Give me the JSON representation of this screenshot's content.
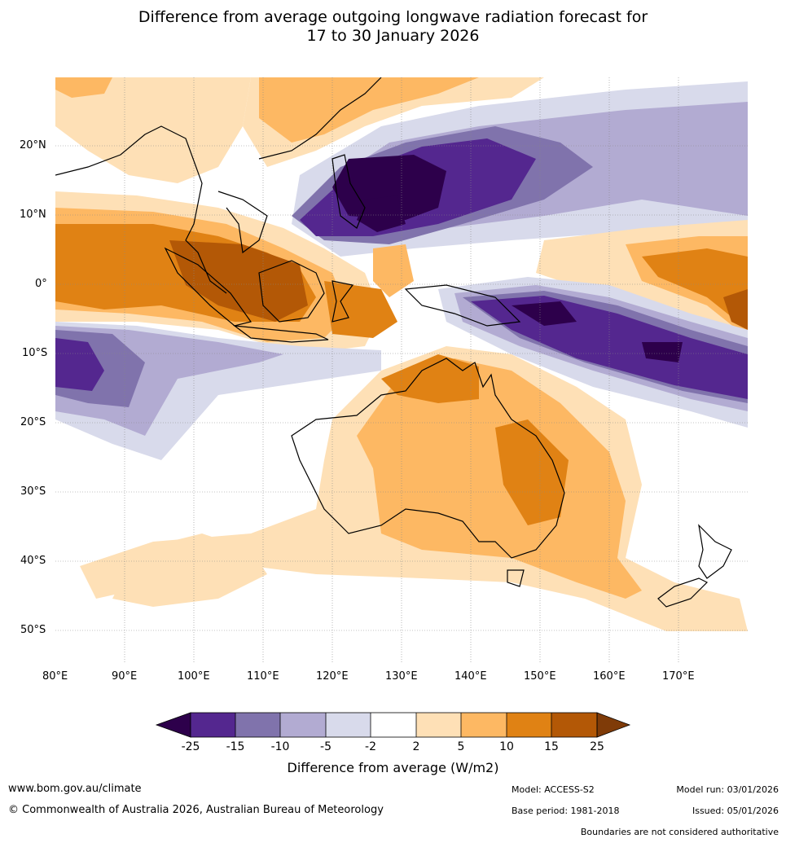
{
  "title": {
    "line1": "Difference from average outgoing longwave radiation forecast for",
    "line2": "17 to 30 January 2026"
  },
  "map": {
    "lon_labels": [
      "80°E",
      "90°E",
      "100°E",
      "110°E",
      "120°E",
      "130°E",
      "140°E",
      "150°E",
      "160°E",
      "170°E"
    ],
    "lat_labels": [
      "20°N",
      "10°N",
      "0°",
      "10°S",
      "20°S",
      "30°S",
      "40°S",
      "50°S"
    ],
    "lon_values": [
      80,
      90,
      100,
      110,
      120,
      130,
      140,
      150,
      160,
      170
    ],
    "lat_values": [
      20,
      10,
      0,
      -10,
      -20,
      -30,
      -40,
      -50
    ],
    "lon_range": [
      80,
      180
    ],
    "lat_range": [
      -55,
      30
    ]
  },
  "colorbar": {
    "ticks": [
      "-25",
      "-15",
      "-10",
      "-5",
      "-2",
      "2",
      "5",
      "10",
      "15",
      "25"
    ],
    "colors": [
      "#54278f",
      "#8073ac",
      "#b2abd2",
      "#d8daeb",
      "#ffffff",
      "#fee0b6",
      "#fdb863",
      "#e08214",
      "#b35806"
    ],
    "low_extend_color": "#2d004b",
    "high_extend_color": "#7f3b08",
    "title": "Difference from average (W/m2)"
  },
  "footer": {
    "website": "www.bom.gov.au/climate",
    "copyright": "© Commonwealth of Australia 2026, Australian Bureau of Meteorology",
    "model": "Model: ACCESS-S2",
    "base_period": "Base period: 1981-2018",
    "model_run": "Model run: 03/01/2026",
    "issued": "Issued: 05/01/2026",
    "disclaimer": "Boundaries are not considered authoritative"
  }
}
